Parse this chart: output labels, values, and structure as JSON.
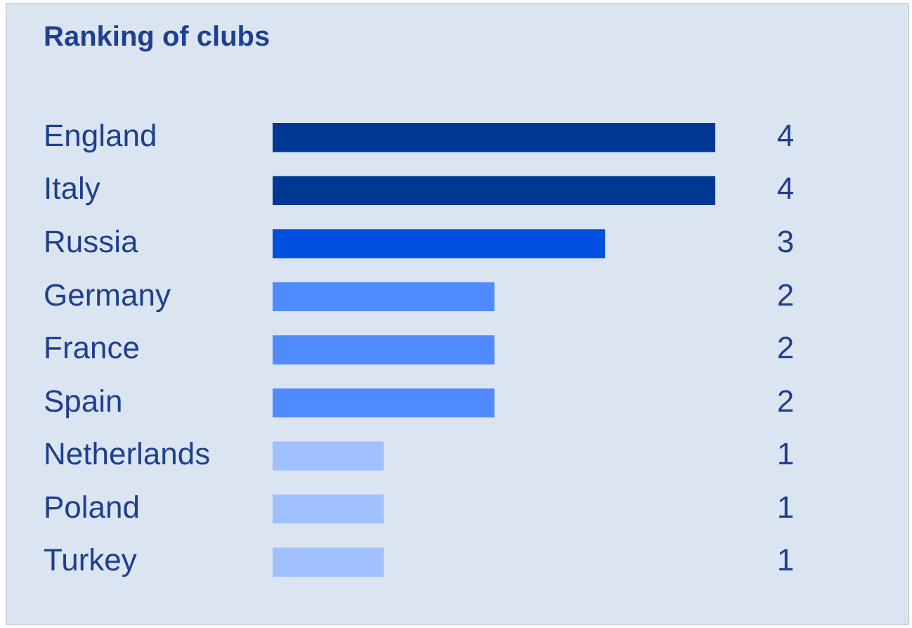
{
  "chart_data": {
    "type": "bar",
    "orientation": "horizontal",
    "title": "Ranking of clubs",
    "categories": [
      "England",
      "Italy",
      "Russia",
      "Germany",
      "France",
      "Spain",
      "Netherlands",
      "Poland",
      "Turkey"
    ],
    "values": [
      4,
      4,
      3,
      2,
      2,
      2,
      1,
      1,
      1
    ],
    "colors": [
      "#003893",
      "#003893",
      "#0050e0",
      "#4f8bff",
      "#4f8bff",
      "#4f8bff",
      "#a0c0ff",
      "#a0c0ff",
      "#a0c0ff"
    ],
    "data_labels": true
  }
}
